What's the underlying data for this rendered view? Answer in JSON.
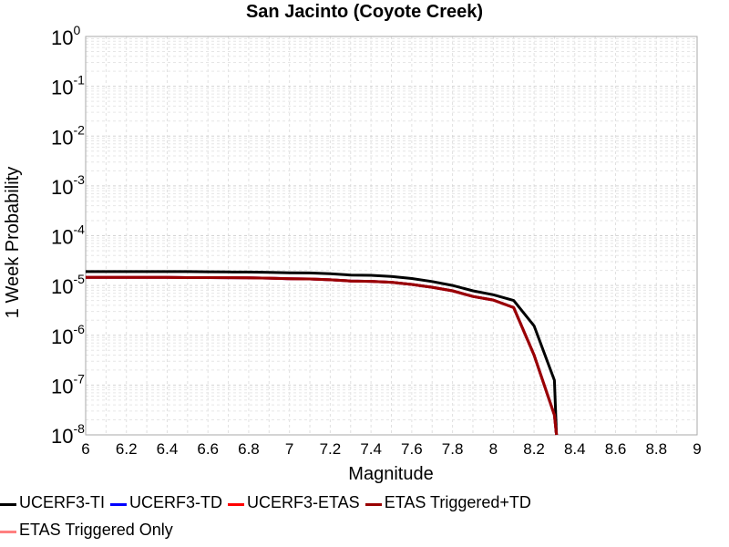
{
  "chart_data": {
    "type": "line",
    "title": "San Jacinto (Coyote Creek)",
    "xlabel": "Magnitude",
    "ylabel": "1 Week Probability",
    "xlim": [
      6,
      9
    ],
    "ylim": [
      1e-08,
      1
    ],
    "yscale": "log",
    "grid": true,
    "xticks": [
      "6",
      "6.2",
      "6.4",
      "6.6",
      "6.8",
      "7",
      "7.2",
      "7.4",
      "7.6",
      "7.8",
      "8",
      "8.2",
      "8.4",
      "8.6",
      "8.8",
      "9"
    ],
    "yticks": [
      {
        "base": "10",
        "exp": "0"
      },
      {
        "base": "10",
        "exp": "-1"
      },
      {
        "base": "10",
        "exp": "-2"
      },
      {
        "base": "10",
        "exp": "-3"
      },
      {
        "base": "10",
        "exp": "-4"
      },
      {
        "base": "10",
        "exp": "-5"
      },
      {
        "base": "10",
        "exp": "-6"
      },
      {
        "base": "10",
        "exp": "-7"
      },
      {
        "base": "10",
        "exp": "-8"
      }
    ],
    "legend_position": "bottom",
    "series": [
      {
        "name": "UCERF3-TI",
        "color": "#000000",
        "x": [
          6.0,
          6.1,
          6.2,
          6.3,
          6.4,
          6.5,
          6.6,
          6.7,
          6.8,
          6.9,
          7.0,
          7.1,
          7.2,
          7.3,
          7.4,
          7.5,
          7.6,
          7.7,
          7.8,
          7.9,
          8.0,
          8.1,
          8.2,
          8.3,
          8.31
        ],
        "y": [
          1.9e-05,
          1.9e-05,
          1.9e-05,
          1.9e-05,
          1.9e-05,
          1.9e-05,
          1.88e-05,
          1.87e-05,
          1.86e-05,
          1.84e-05,
          1.8e-05,
          1.78e-05,
          1.72e-05,
          1.62e-05,
          1.6e-05,
          1.52e-05,
          1.38e-05,
          1.2e-05,
          1e-05,
          7.8e-06,
          6.5e-06,
          5e-06,
          1.55e-06,
          1.25e-07,
          1e-08
        ]
      },
      {
        "name": "UCERF3-TD",
        "color": "#0000ff",
        "x": [
          6.0,
          6.1,
          6.2,
          6.3,
          6.4,
          6.5,
          6.6,
          6.7,
          6.8,
          6.9,
          7.0,
          7.1,
          7.2,
          7.3,
          7.4,
          7.5,
          7.6,
          7.7,
          7.8,
          7.9,
          8.0,
          8.1,
          8.2,
          8.3,
          8.31
        ],
        "y": [
          1.45e-05,
          1.45e-05,
          1.45e-05,
          1.45e-05,
          1.45e-05,
          1.44e-05,
          1.44e-05,
          1.43e-05,
          1.42e-05,
          1.4e-05,
          1.37e-05,
          1.35e-05,
          1.3e-05,
          1.23e-05,
          1.21e-05,
          1.16e-05,
          1.05e-05,
          9.2e-06,
          7.8e-06,
          6e-06,
          5.1e-06,
          3.6e-06,
          4e-07,
          2.5e-08,
          1e-08
        ]
      },
      {
        "name": "UCERF3-ETAS",
        "color": "#ff0000",
        "x": [
          6.0,
          6.1,
          6.2,
          6.3,
          6.4,
          6.5,
          6.6,
          6.7,
          6.8,
          6.9,
          7.0,
          7.1,
          7.2,
          7.3,
          7.4,
          7.5,
          7.6,
          7.7,
          7.8,
          7.9,
          8.0,
          8.1,
          8.2,
          8.3,
          8.31
        ],
        "y": [
          1.45e-05,
          1.45e-05,
          1.45e-05,
          1.45e-05,
          1.45e-05,
          1.44e-05,
          1.44e-05,
          1.43e-05,
          1.42e-05,
          1.4e-05,
          1.37e-05,
          1.35e-05,
          1.3e-05,
          1.23e-05,
          1.21e-05,
          1.16e-05,
          1.05e-05,
          9.2e-06,
          7.8e-06,
          6e-06,
          5.1e-06,
          3.6e-06,
          4e-07,
          2.5e-08,
          1e-08
        ]
      },
      {
        "name": "ETAS Triggered+TD",
        "color": "#990000",
        "x": [
          6.0,
          6.1,
          6.2,
          6.3,
          6.4,
          6.5,
          6.6,
          6.7,
          6.8,
          6.9,
          7.0,
          7.1,
          7.2,
          7.3,
          7.4,
          7.5,
          7.6,
          7.7,
          7.8,
          7.9,
          8.0,
          8.1,
          8.2,
          8.3,
          8.31
        ],
        "y": [
          1.45e-05,
          1.45e-05,
          1.45e-05,
          1.45e-05,
          1.45e-05,
          1.44e-05,
          1.44e-05,
          1.43e-05,
          1.42e-05,
          1.4e-05,
          1.37e-05,
          1.35e-05,
          1.3e-05,
          1.23e-05,
          1.21e-05,
          1.16e-05,
          1.05e-05,
          9.2e-06,
          7.8e-06,
          6e-06,
          5.1e-06,
          3.6e-06,
          4e-07,
          2.5e-08,
          1e-08
        ]
      },
      {
        "name": "ETAS Triggered Only",
        "color": "#ff8080",
        "x": [],
        "y": []
      }
    ]
  }
}
